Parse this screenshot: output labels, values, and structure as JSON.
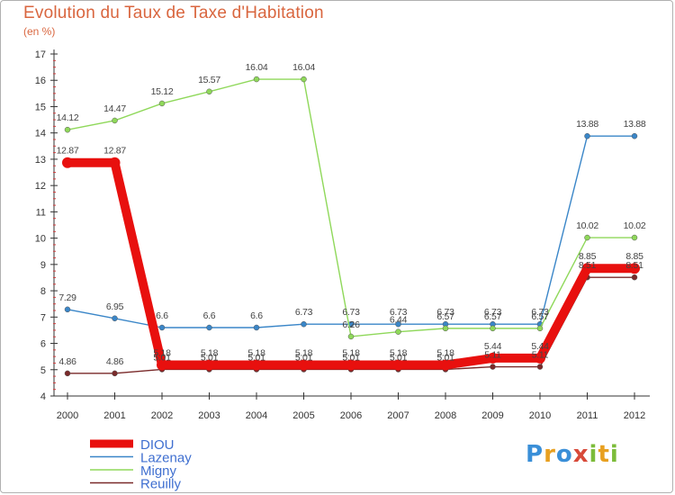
{
  "title": "Evolution du Taux de Taxe d'Habitation",
  "subtitle": "(en %)",
  "logo": {
    "text": "Proxiti"
  },
  "chart_data": {
    "type": "line",
    "x": [
      "2000",
      "2001",
      "2002",
      "2003",
      "2004",
      "2005",
      "2006",
      "2007",
      "2008",
      "2009",
      "2010",
      "2011",
      "2012"
    ],
    "ylim": [
      4,
      17
    ],
    "yticks": [
      "4",
      "5",
      "6",
      "7",
      "8",
      "9",
      "10",
      "11",
      "12",
      "13",
      "14",
      "15",
      "16",
      "17"
    ],
    "grid": false,
    "legend_position": "bottom-left",
    "series": [
      {
        "name": "Lazenay",
        "color": "#3a86c8",
        "values": [
          7.29,
          6.95,
          6.6,
          6.6,
          6.6,
          6.73,
          6.73,
          6.73,
          6.73,
          6.73,
          6.73,
          13.88,
          13.88
        ],
        "labels": [
          "7.29",
          "6.95",
          "6.6",
          "6.6",
          "6.6",
          "6.73",
          "6.73",
          "6.73",
          "6.73",
          "6.73",
          "6.73",
          "13.88",
          "13.88"
        ]
      },
      {
        "name": "Migny",
        "color": "#8fd85a",
        "values": [
          14.12,
          14.47,
          15.12,
          15.57,
          16.04,
          16.04,
          6.26,
          6.44,
          6.57,
          6.57,
          6.57,
          10.02,
          10.02
        ],
        "labels": [
          "14.12",
          "14.47",
          "15.12",
          "15.57",
          "16.04",
          "16.04",
          "6.26",
          "6.44",
          "6.57",
          "6.57",
          "6.57",
          "10.02",
          "10.02"
        ]
      },
      {
        "name": "Reuilly",
        "color": "#7a2a2a",
        "values": [
          4.86,
          4.86,
          5.01,
          5.01,
          5.01,
          5.01,
          5.01,
          5.01,
          5.01,
          5.11,
          5.11,
          8.51,
          8.51
        ],
        "labels": [
          "4.86",
          "4.86",
          "5.01",
          "5.01",
          "5.01",
          "5.01",
          "5.01",
          "5.01",
          "5.01",
          "5.11",
          "5.11",
          "8.51",
          "8.51"
        ]
      },
      {
        "name": "DIOU",
        "color": "#e8100e",
        "values": [
          12.87,
          12.87,
          5.18,
          5.18,
          5.18,
          5.18,
          5.18,
          5.18,
          5.18,
          5.44,
          5.44,
          8.85,
          8.85
        ],
        "labels": [
          "12.87",
          "12.87",
          "5.18",
          "5.18",
          "5.18",
          "5.18",
          "5.18",
          "5.18",
          "5.18",
          "5.44",
          "5.44",
          "8.85",
          "8.85"
        ]
      }
    ],
    "legend": [
      {
        "name": "DIOU",
        "color": "#e8100e"
      },
      {
        "name": "Lazenay",
        "color": "#3a86c8"
      },
      {
        "name": "Migny",
        "color": "#8fd85a"
      },
      {
        "name": "Reuilly",
        "color": "#7a2a2a"
      }
    ]
  }
}
